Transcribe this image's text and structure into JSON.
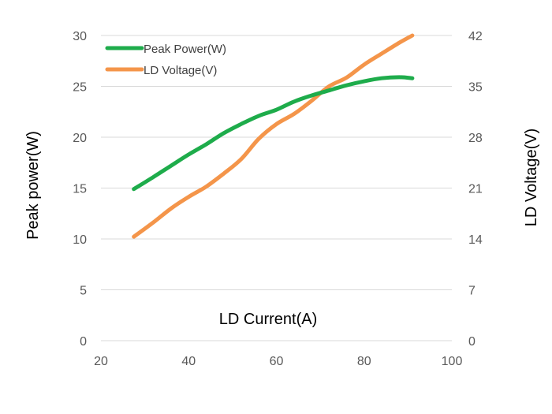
{
  "chart_data": {
    "type": "line",
    "title": "",
    "xlabel": "LD Current(A)",
    "ylabel": "Peak power(W)",
    "y2label": "LD Voltage(V)",
    "xlim": [
      20,
      100
    ],
    "ylim": [
      0,
      30
    ],
    "y2lim": [
      0,
      42
    ],
    "x_ticks": [
      20,
      40,
      60,
      80,
      100
    ],
    "y_ticks": [
      0,
      5,
      10,
      15,
      20,
      25,
      30
    ],
    "y2_ticks": [
      0,
      7,
      14,
      21,
      28,
      35,
      42
    ],
    "grid": true,
    "legend_position": "top-left",
    "series": [
      {
        "name": "Peak Power(W)",
        "axis": "left",
        "color": "#1eac4b",
        "points": [
          [
            27.5,
            14.9
          ],
          [
            32,
            16.1
          ],
          [
            36,
            17.2
          ],
          [
            40,
            18.3
          ],
          [
            44,
            19.3
          ],
          [
            48,
            20.4
          ],
          [
            52,
            21.3
          ],
          [
            56,
            22.1
          ],
          [
            60,
            22.7
          ],
          [
            64,
            23.5
          ],
          [
            68,
            24.1
          ],
          [
            72,
            24.6
          ],
          [
            76,
            25.1
          ],
          [
            80,
            25.5
          ],
          [
            84,
            25.8
          ],
          [
            88,
            25.9
          ],
          [
            91,
            25.8
          ]
        ]
      },
      {
        "name": "LD Voltage(V)",
        "axis": "right",
        "color": "#f4954a",
        "points": [
          [
            27.5,
            14.3
          ],
          [
            32,
            16.3
          ],
          [
            36,
            18.2
          ],
          [
            40,
            19.8
          ],
          [
            44,
            21.2
          ],
          [
            48,
            23.0
          ],
          [
            52,
            25.0
          ],
          [
            56,
            27.8
          ],
          [
            60,
            29.8
          ],
          [
            64,
            31.2
          ],
          [
            68,
            33.0
          ],
          [
            72,
            35.0
          ],
          [
            76,
            36.2
          ],
          [
            80,
            38.0
          ],
          [
            84,
            39.5
          ],
          [
            88,
            41.0
          ],
          [
            91,
            42.0
          ]
        ]
      }
    ]
  }
}
